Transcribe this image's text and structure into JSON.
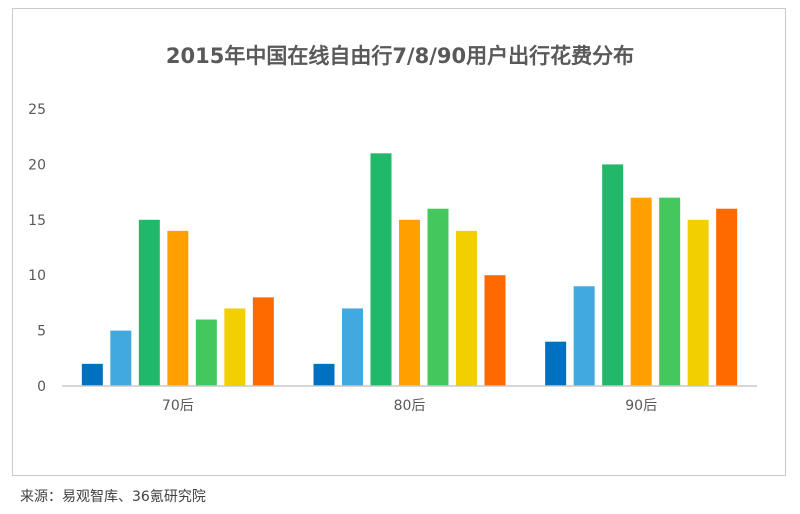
{
  "title": "2015年中国在线自由行7/8/90用户出行花费分布",
  "source": "来源：易观智库、36氪研究院",
  "colors": [
    "#0070c0",
    "#41a9e0",
    "#21b86a",
    "#ffa000",
    "#44c85e",
    "#f2cf00",
    "#ff6a00"
  ],
  "chart_data": {
    "type": "bar",
    "categories": [
      "70后",
      "80后",
      "90后"
    ],
    "series": [
      {
        "values": [
          2,
          2,
          4
        ]
      },
      {
        "values": [
          5,
          7,
          9
        ]
      },
      {
        "values": [
          15,
          21,
          20
        ]
      },
      {
        "values": [
          14,
          15,
          17
        ]
      },
      {
        "values": [
          6,
          16,
          17
        ]
      },
      {
        "values": [
          7,
          14,
          15
        ]
      },
      {
        "values": [
          8,
          10,
          16
        ]
      }
    ],
    "yticks": [
      0,
      5,
      10,
      15,
      20,
      25
    ],
    "ylim": [
      0,
      25
    ],
    "grid": false,
    "legend": "none"
  }
}
